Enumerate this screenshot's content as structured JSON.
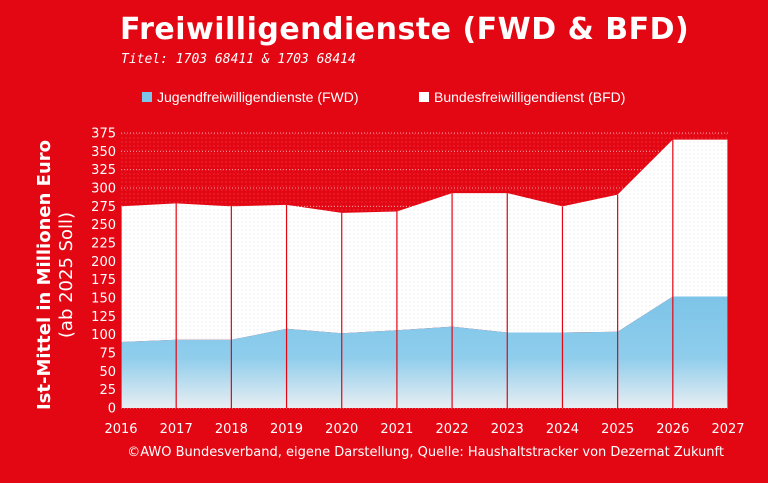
{
  "header": {
    "title": "Freiwilligendienste (FWD & BFD)",
    "subtitle": "Titel: 1703 68411 & 1703 68414"
  },
  "footer": {
    "source": "©AWO Bundesverband, eigene Darstellung, Quelle: Haushaltstracker von Dezernat Zukunft"
  },
  "colors": {
    "background": "#e30613",
    "fwd": "#7cc4e8",
    "bfd": "#ffffff",
    "dividers": "#e30613"
  },
  "chart_data": {
    "type": "area",
    "stacked": true,
    "x": [
      2016,
      2017,
      2018,
      2019,
      2020,
      2021,
      2022,
      2023,
      2024,
      2025,
      2026,
      2027
    ],
    "series": [
      {
        "name": "Jugendfreiwilligendienste (FWD)",
        "values": [
          90,
          93,
          93,
          108,
          102,
          106,
          111,
          103,
          103,
          104,
          152,
          152
        ]
      },
      {
        "name": "Bundesfreiwilligendienst (BFD)",
        "values": [
          185,
          186,
          182,
          169,
          164,
          162,
          182,
          190,
          172,
          187,
          214,
          214
        ]
      }
    ],
    "totals": [
      275,
      279,
      275,
      277,
      266,
      268,
      293,
      293,
      275,
      291,
      366,
      366
    ],
    "ylabel": "Ist-Mittel in Millionen Euro",
    "ylabel_sub": "(ab 2025 Soll)",
    "xlabel": "",
    "ylim": [
      0,
      375
    ],
    "yticks": [
      0,
      25,
      50,
      75,
      100,
      125,
      150,
      175,
      200,
      225,
      250,
      275,
      300,
      325,
      350,
      375
    ],
    "legend": "top",
    "grid": true
  }
}
